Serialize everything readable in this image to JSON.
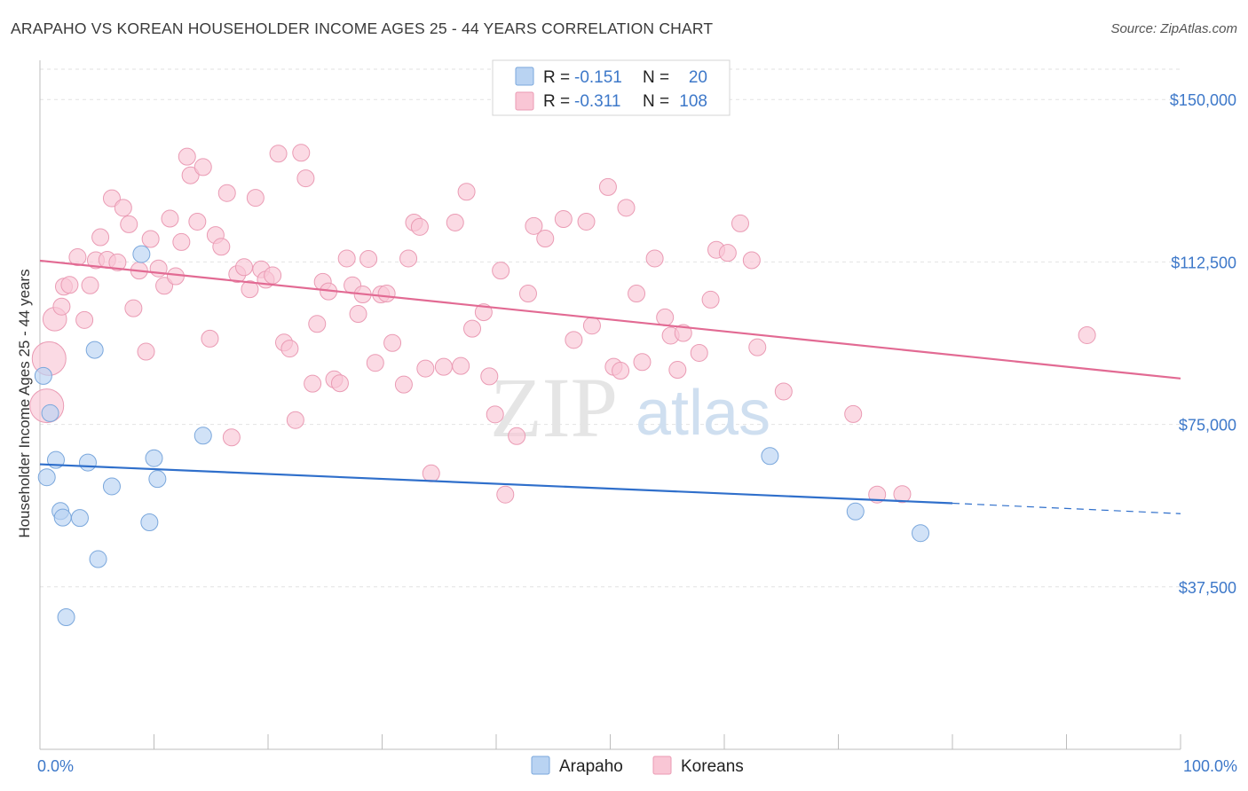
{
  "title": "ARAPAHO VS KOREAN HOUSEHOLDER INCOME AGES 25 - 44 YEARS CORRELATION CHART",
  "source": "Source: ZipAtlas.com",
  "watermark": {
    "part1": "ZIP",
    "part2": "atlas"
  },
  "colors": {
    "arapaho_fill": "#b9d3f2",
    "arapaho_stroke": "#7aa7dc",
    "arapaho_line": "#2f6fcb",
    "korean_fill": "#f9c6d5",
    "korean_stroke": "#ea9bb4",
    "korean_line": "#e26a93",
    "axis_label": "#3d78c9",
    "grid": "#e2e2e2"
  },
  "legend": {
    "rows": [
      {
        "r_label": "R =",
        "r_value": "-0.151",
        "n_label": "N =",
        "n_value": "20"
      },
      {
        "r_label": "R =",
        "r_value": "-0.311",
        "n_label": "N =",
        "n_value": "108"
      }
    ]
  },
  "chart_data": {
    "type": "scatter",
    "title": "ARAPAHO VS KOREAN HOUSEHOLDER INCOME AGES 25 - 44 YEARS CORRELATION CHART",
    "xlabel": "",
    "ylabel": "Householder Income Ages 25 - 44 years",
    "xlim": [
      0,
      100
    ],
    "ylim": [
      0,
      157000
    ],
    "x_tick_labels": [
      "0.0%",
      "100.0%"
    ],
    "y_ticks": [
      37500,
      75000,
      112500,
      150000
    ],
    "y_tick_labels": [
      "$37,500",
      "$75,000",
      "$112,500",
      "$150,000"
    ],
    "series": [
      {
        "name": "Arapaho",
        "R": -0.151,
        "N": 20,
        "trend": {
          "x0": 0,
          "y0": 65800,
          "x1": 80,
          "y1": 56800,
          "dash_to_x": 100,
          "dash_to_y": 54400
        },
        "points": [
          {
            "x": 0.3,
            "y": 86200,
            "s": 1
          },
          {
            "x": 0.6,
            "y": 62800,
            "s": 1
          },
          {
            "x": 0.9,
            "y": 77600,
            "s": 1
          },
          {
            "x": 1.4,
            "y": 66800,
            "s": 1
          },
          {
            "x": 1.8,
            "y": 55000,
            "s": 1
          },
          {
            "x": 2.0,
            "y": 53500,
            "s": 1
          },
          {
            "x": 2.3,
            "y": 30500,
            "s": 1
          },
          {
            "x": 3.5,
            "y": 53400,
            "s": 1
          },
          {
            "x": 4.2,
            "y": 66200,
            "s": 1
          },
          {
            "x": 4.8,
            "y": 92200,
            "s": 1
          },
          {
            "x": 5.1,
            "y": 43900,
            "s": 1
          },
          {
            "x": 6.3,
            "y": 60700,
            "s": 1
          },
          {
            "x": 8.9,
            "y": 114300,
            "s": 1
          },
          {
            "x": 9.6,
            "y": 52400,
            "s": 1
          },
          {
            "x": 10.0,
            "y": 67200,
            "s": 1
          },
          {
            "x": 10.3,
            "y": 62400,
            "s": 1
          },
          {
            "x": 14.3,
            "y": 72400,
            "s": 1
          },
          {
            "x": 64.0,
            "y": 67700,
            "s": 1
          },
          {
            "x": 71.5,
            "y": 54900,
            "s": 1
          },
          {
            "x": 77.2,
            "y": 49900,
            "s": 1
          }
        ]
      },
      {
        "name": "Koreans",
        "R": -0.311,
        "N": 108,
        "trend": {
          "x0": 0,
          "y0": 112800,
          "x1": 100,
          "y1": 85600
        },
        "points": [
          {
            "x": 0.6,
            "y": 79300,
            "s": 2
          },
          {
            "x": 0.8,
            "y": 90200,
            "s": 2
          },
          {
            "x": 1.3,
            "y": 99300,
            "s": 1.4
          },
          {
            "x": 1.9,
            "y": 102200,
            "s": 1
          },
          {
            "x": 2.1,
            "y": 106800,
            "s": 1
          },
          {
            "x": 2.6,
            "y": 107200,
            "s": 1
          },
          {
            "x": 3.3,
            "y": 113600,
            "s": 1
          },
          {
            "x": 3.9,
            "y": 99100,
            "s": 1
          },
          {
            "x": 4.4,
            "y": 107100,
            "s": 1
          },
          {
            "x": 4.9,
            "y": 112900,
            "s": 1
          },
          {
            "x": 5.3,
            "y": 118200,
            "s": 1
          },
          {
            "x": 5.9,
            "y": 113000,
            "s": 1
          },
          {
            "x": 6.3,
            "y": 127200,
            "s": 1
          },
          {
            "x": 6.8,
            "y": 112400,
            "s": 1
          },
          {
            "x": 7.3,
            "y": 125000,
            "s": 1
          },
          {
            "x": 7.8,
            "y": 121200,
            "s": 1
          },
          {
            "x": 8.2,
            "y": 101800,
            "s": 1
          },
          {
            "x": 8.7,
            "y": 110500,
            "s": 1
          },
          {
            "x": 9.3,
            "y": 91800,
            "s": 1
          },
          {
            "x": 9.7,
            "y": 117800,
            "s": 1
          },
          {
            "x": 10.4,
            "y": 111000,
            "s": 1
          },
          {
            "x": 10.9,
            "y": 107000,
            "s": 1
          },
          {
            "x": 11.4,
            "y": 122500,
            "s": 1
          },
          {
            "x": 11.9,
            "y": 109200,
            "s": 1
          },
          {
            "x": 12.4,
            "y": 117100,
            "s": 1
          },
          {
            "x": 12.9,
            "y": 136800,
            "s": 1
          },
          {
            "x": 13.2,
            "y": 132500,
            "s": 1
          },
          {
            "x": 13.8,
            "y": 121800,
            "s": 1
          },
          {
            "x": 14.3,
            "y": 134400,
            "s": 1
          },
          {
            "x": 14.9,
            "y": 94800,
            "s": 1
          },
          {
            "x": 15.4,
            "y": 118700,
            "s": 1
          },
          {
            "x": 15.9,
            "y": 116000,
            "s": 1
          },
          {
            "x": 16.4,
            "y": 128400,
            "s": 1
          },
          {
            "x": 16.8,
            "y": 72000,
            "s": 1
          },
          {
            "x": 17.3,
            "y": 109700,
            "s": 1
          },
          {
            "x": 17.9,
            "y": 111300,
            "s": 1
          },
          {
            "x": 18.4,
            "y": 106200,
            "s": 1
          },
          {
            "x": 18.9,
            "y": 127300,
            "s": 1
          },
          {
            "x": 19.4,
            "y": 110800,
            "s": 1
          },
          {
            "x": 19.8,
            "y": 108400,
            "s": 1
          },
          {
            "x": 20.4,
            "y": 109400,
            "s": 1
          },
          {
            "x": 20.9,
            "y": 137500,
            "s": 1
          },
          {
            "x": 21.4,
            "y": 93900,
            "s": 1
          },
          {
            "x": 21.9,
            "y": 92500,
            "s": 1
          },
          {
            "x": 22.4,
            "y": 76000,
            "s": 1
          },
          {
            "x": 22.9,
            "y": 137700,
            "s": 1
          },
          {
            "x": 23.3,
            "y": 131800,
            "s": 1
          },
          {
            "x": 23.9,
            "y": 84400,
            "s": 1
          },
          {
            "x": 24.3,
            "y": 98200,
            "s": 1
          },
          {
            "x": 24.8,
            "y": 107900,
            "s": 1
          },
          {
            "x": 25.3,
            "y": 105700,
            "s": 1
          },
          {
            "x": 25.8,
            "y": 85400,
            "s": 1
          },
          {
            "x": 26.3,
            "y": 84500,
            "s": 1
          },
          {
            "x": 26.9,
            "y": 113300,
            "s": 1
          },
          {
            "x": 27.4,
            "y": 107100,
            "s": 1
          },
          {
            "x": 27.9,
            "y": 100500,
            "s": 1
          },
          {
            "x": 28.3,
            "y": 105000,
            "s": 1
          },
          {
            "x": 28.8,
            "y": 113200,
            "s": 1
          },
          {
            "x": 29.4,
            "y": 89200,
            "s": 1
          },
          {
            "x": 29.9,
            "y": 105000,
            "s": 1
          },
          {
            "x": 30.4,
            "y": 105200,
            "s": 1
          },
          {
            "x": 30.9,
            "y": 93800,
            "s": 1
          },
          {
            "x": 31.9,
            "y": 84200,
            "s": 1
          },
          {
            "x": 32.3,
            "y": 113300,
            "s": 1
          },
          {
            "x": 32.8,
            "y": 121600,
            "s": 1
          },
          {
            "x": 33.3,
            "y": 120600,
            "s": 1
          },
          {
            "x": 33.8,
            "y": 87900,
            "s": 1
          },
          {
            "x": 34.3,
            "y": 63700,
            "s": 1
          },
          {
            "x": 35.4,
            "y": 88300,
            "s": 1
          },
          {
            "x": 36.4,
            "y": 121600,
            "s": 1
          },
          {
            "x": 36.9,
            "y": 88500,
            "s": 1
          },
          {
            "x": 37.4,
            "y": 128700,
            "s": 1
          },
          {
            "x": 37.9,
            "y": 97100,
            "s": 1
          },
          {
            "x": 38.9,
            "y": 100900,
            "s": 1
          },
          {
            "x": 39.4,
            "y": 86100,
            "s": 1
          },
          {
            "x": 39.9,
            "y": 77300,
            "s": 1
          },
          {
            "x": 40.4,
            "y": 110500,
            "s": 1
          },
          {
            "x": 40.8,
            "y": 58800,
            "s": 1
          },
          {
            "x": 41.8,
            "y": 72300,
            "s": 1
          },
          {
            "x": 42.8,
            "y": 105200,
            "s": 1
          },
          {
            "x": 43.3,
            "y": 120800,
            "s": 1
          },
          {
            "x": 44.3,
            "y": 117900,
            "s": 1
          },
          {
            "x": 45.9,
            "y": 122400,
            "s": 1
          },
          {
            "x": 46.8,
            "y": 94500,
            "s": 1
          },
          {
            "x": 47.9,
            "y": 121800,
            "s": 1
          },
          {
            "x": 48.4,
            "y": 97800,
            "s": 1
          },
          {
            "x": 49.8,
            "y": 129800,
            "s": 1
          },
          {
            "x": 50.3,
            "y": 88300,
            "s": 1
          },
          {
            "x": 50.9,
            "y": 87400,
            "s": 1
          },
          {
            "x": 51.4,
            "y": 125000,
            "s": 1
          },
          {
            "x": 52.3,
            "y": 105200,
            "s": 1
          },
          {
            "x": 52.8,
            "y": 89400,
            "s": 1
          },
          {
            "x": 53.9,
            "y": 113300,
            "s": 1
          },
          {
            "x": 54.8,
            "y": 99700,
            "s": 1
          },
          {
            "x": 55.3,
            "y": 95500,
            "s": 1
          },
          {
            "x": 55.9,
            "y": 87600,
            "s": 1
          },
          {
            "x": 56.4,
            "y": 96100,
            "s": 1
          },
          {
            "x": 57.8,
            "y": 91500,
            "s": 1
          },
          {
            "x": 58.8,
            "y": 103800,
            "s": 1
          },
          {
            "x": 59.3,
            "y": 115300,
            "s": 1
          },
          {
            "x": 60.3,
            "y": 114600,
            "s": 1
          },
          {
            "x": 61.4,
            "y": 121400,
            "s": 1
          },
          {
            "x": 62.4,
            "y": 112900,
            "s": 1
          },
          {
            "x": 62.9,
            "y": 92800,
            "s": 1
          },
          {
            "x": 65.2,
            "y": 82600,
            "s": 1
          },
          {
            "x": 71.3,
            "y": 77400,
            "s": 1
          },
          {
            "x": 73.4,
            "y": 58800,
            "s": 1
          },
          {
            "x": 75.6,
            "y": 58900,
            "s": 1
          },
          {
            "x": 91.8,
            "y": 95600,
            "s": 1
          }
        ]
      }
    ]
  },
  "bottom_legend": {
    "items": [
      {
        "label": "Arapaho"
      },
      {
        "label": "Koreans"
      }
    ]
  }
}
